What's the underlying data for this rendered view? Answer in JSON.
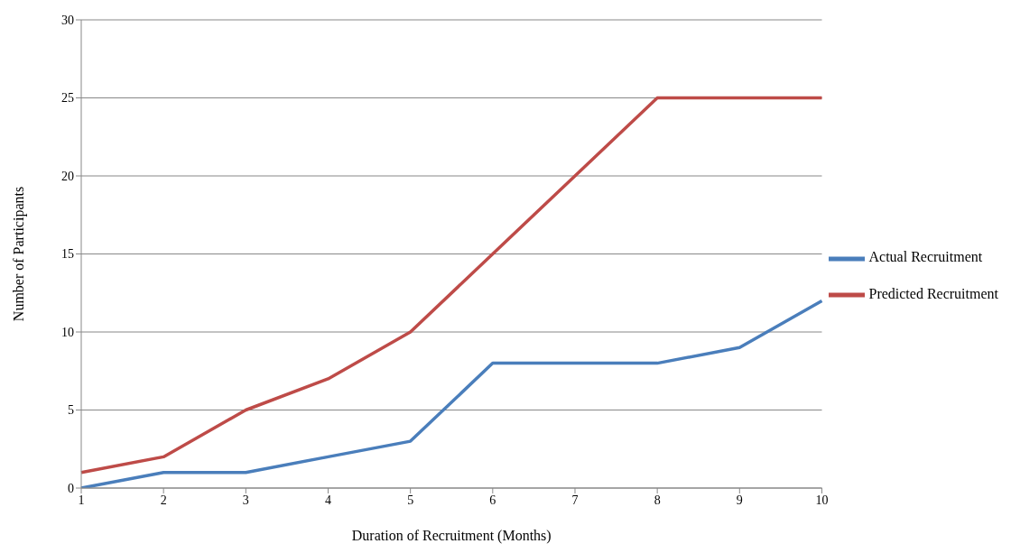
{
  "chart_data": {
    "type": "line",
    "xlabel": "Duration of Recruitment (Months)",
    "ylabel": "Number of Participants",
    "categories": [
      "1",
      "2",
      "3",
      "4",
      "5",
      "6",
      "7",
      "8",
      "9",
      "10"
    ],
    "series": [
      {
        "name": "Actual Recruitment",
        "color": "#4a7ebb",
        "values": [
          0,
          1,
          1,
          2,
          3,
          8,
          8,
          8,
          9,
          12
        ]
      },
      {
        "name": "Predicted Recruitment",
        "color": "#be4b48",
        "values": [
          1,
          2,
          5,
          7,
          10,
          15,
          20,
          25,
          25,
          25
        ]
      }
    ],
    "ylim": [
      0,
      30
    ],
    "yticks": [
      0,
      5,
      10,
      15,
      20,
      25,
      30
    ],
    "grid": "y",
    "legend": "right",
    "marker": "none",
    "line_style": "solid"
  }
}
